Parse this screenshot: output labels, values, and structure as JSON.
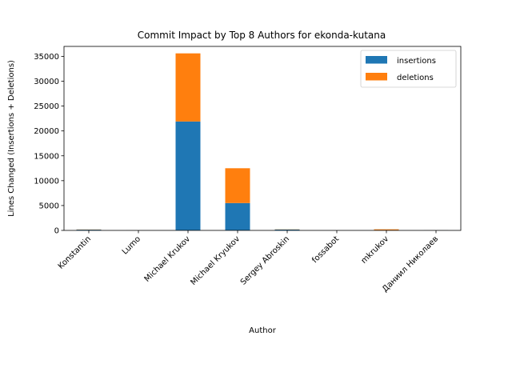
{
  "chart_data": {
    "type": "bar",
    "stacked": true,
    "title": "Commit Impact by Top 8 Authors for ekonda-kutana",
    "xlabel": "Author",
    "ylabel": "Lines Changed (Insertions + Deletions)",
    "categories": [
      "Konstantin",
      "Lumo",
      "Michael Krukov",
      "Michael Kryukov",
      "Sergey Abroskin",
      "fossabot",
      "mkrukov",
      "Даниил Николаев"
    ],
    "series": [
      {
        "name": "insertions",
        "color": "#1f77b4",
        "values": [
          150,
          10,
          21900,
          5500,
          180,
          5,
          60,
          20
        ]
      },
      {
        "name": "deletions",
        "color": "#ff7f0e",
        "values": [
          40,
          5,
          13700,
          7000,
          40,
          3,
          160,
          10
        ]
      }
    ],
    "ylim": [
      0,
      37000
    ],
    "yticks": [
      0,
      5000,
      10000,
      15000,
      20000,
      25000,
      30000,
      35000
    ],
    "grid": false,
    "legend_position": "top-right"
  }
}
